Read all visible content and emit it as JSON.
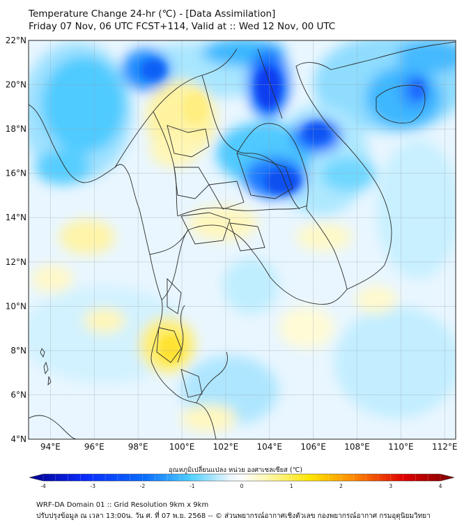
{
  "title": {
    "line1": "Temperature Change 24-hr (℃) - [Data Assimilation]",
    "line2": "Friday 07 Nov, 06 UTC FCST+114, Valid at :: Wed 12 Nov, 00 UTC"
  },
  "map": {
    "lat_range": [
      4,
      22
    ],
    "lon_range": [
      93,
      112.5
    ],
    "lat_labels": [
      "22°N",
      "20°N",
      "18°N",
      "16°N",
      "14°N",
      "12°N",
      "10°N",
      "8°N",
      "6°N",
      "4°N"
    ],
    "lon_labels": [
      "94°E",
      "96°E",
      "98°E",
      "100°E",
      "102°E",
      "104°E",
      "106°E",
      "108°E",
      "110°E",
      "112°E"
    ],
    "grid": true
  },
  "colorbar": {
    "label": "อุณหภูมิเปลี่ยนแปลง หน่วย องศาเซลเซียส (℃)",
    "ticks": [
      "-4",
      "-3",
      "-2",
      "-1",
      "0",
      "1",
      "2",
      "3",
      "4"
    ],
    "range": [
      -4,
      4
    ],
    "colors": {
      "deep_blue": "#00008b",
      "blue": "#0a6cff",
      "cyan": "#4fd0ff",
      "light": "#e8f6ff",
      "white": "#ffffff",
      "pale_yellow": "#fff8b0",
      "yellow": "#ffe600",
      "orange": "#ff8c00",
      "red": "#e00000",
      "dark_red": "#7a0000"
    }
  },
  "footer": {
    "line1": "WRF-DA Domain 01 :: Grid Resolution 9km x 9km",
    "line2": "ปรับปรุงข้อมูล ณ เวลา 13:00น. วัน ศ. ที่ 07 พ.ย. 2568 -- © ส่วนพยากรณ์อากาศเชิงตัวเลข กองพยากรณ์อากาศ กรมอุตุนิยมวิทยา"
  }
}
